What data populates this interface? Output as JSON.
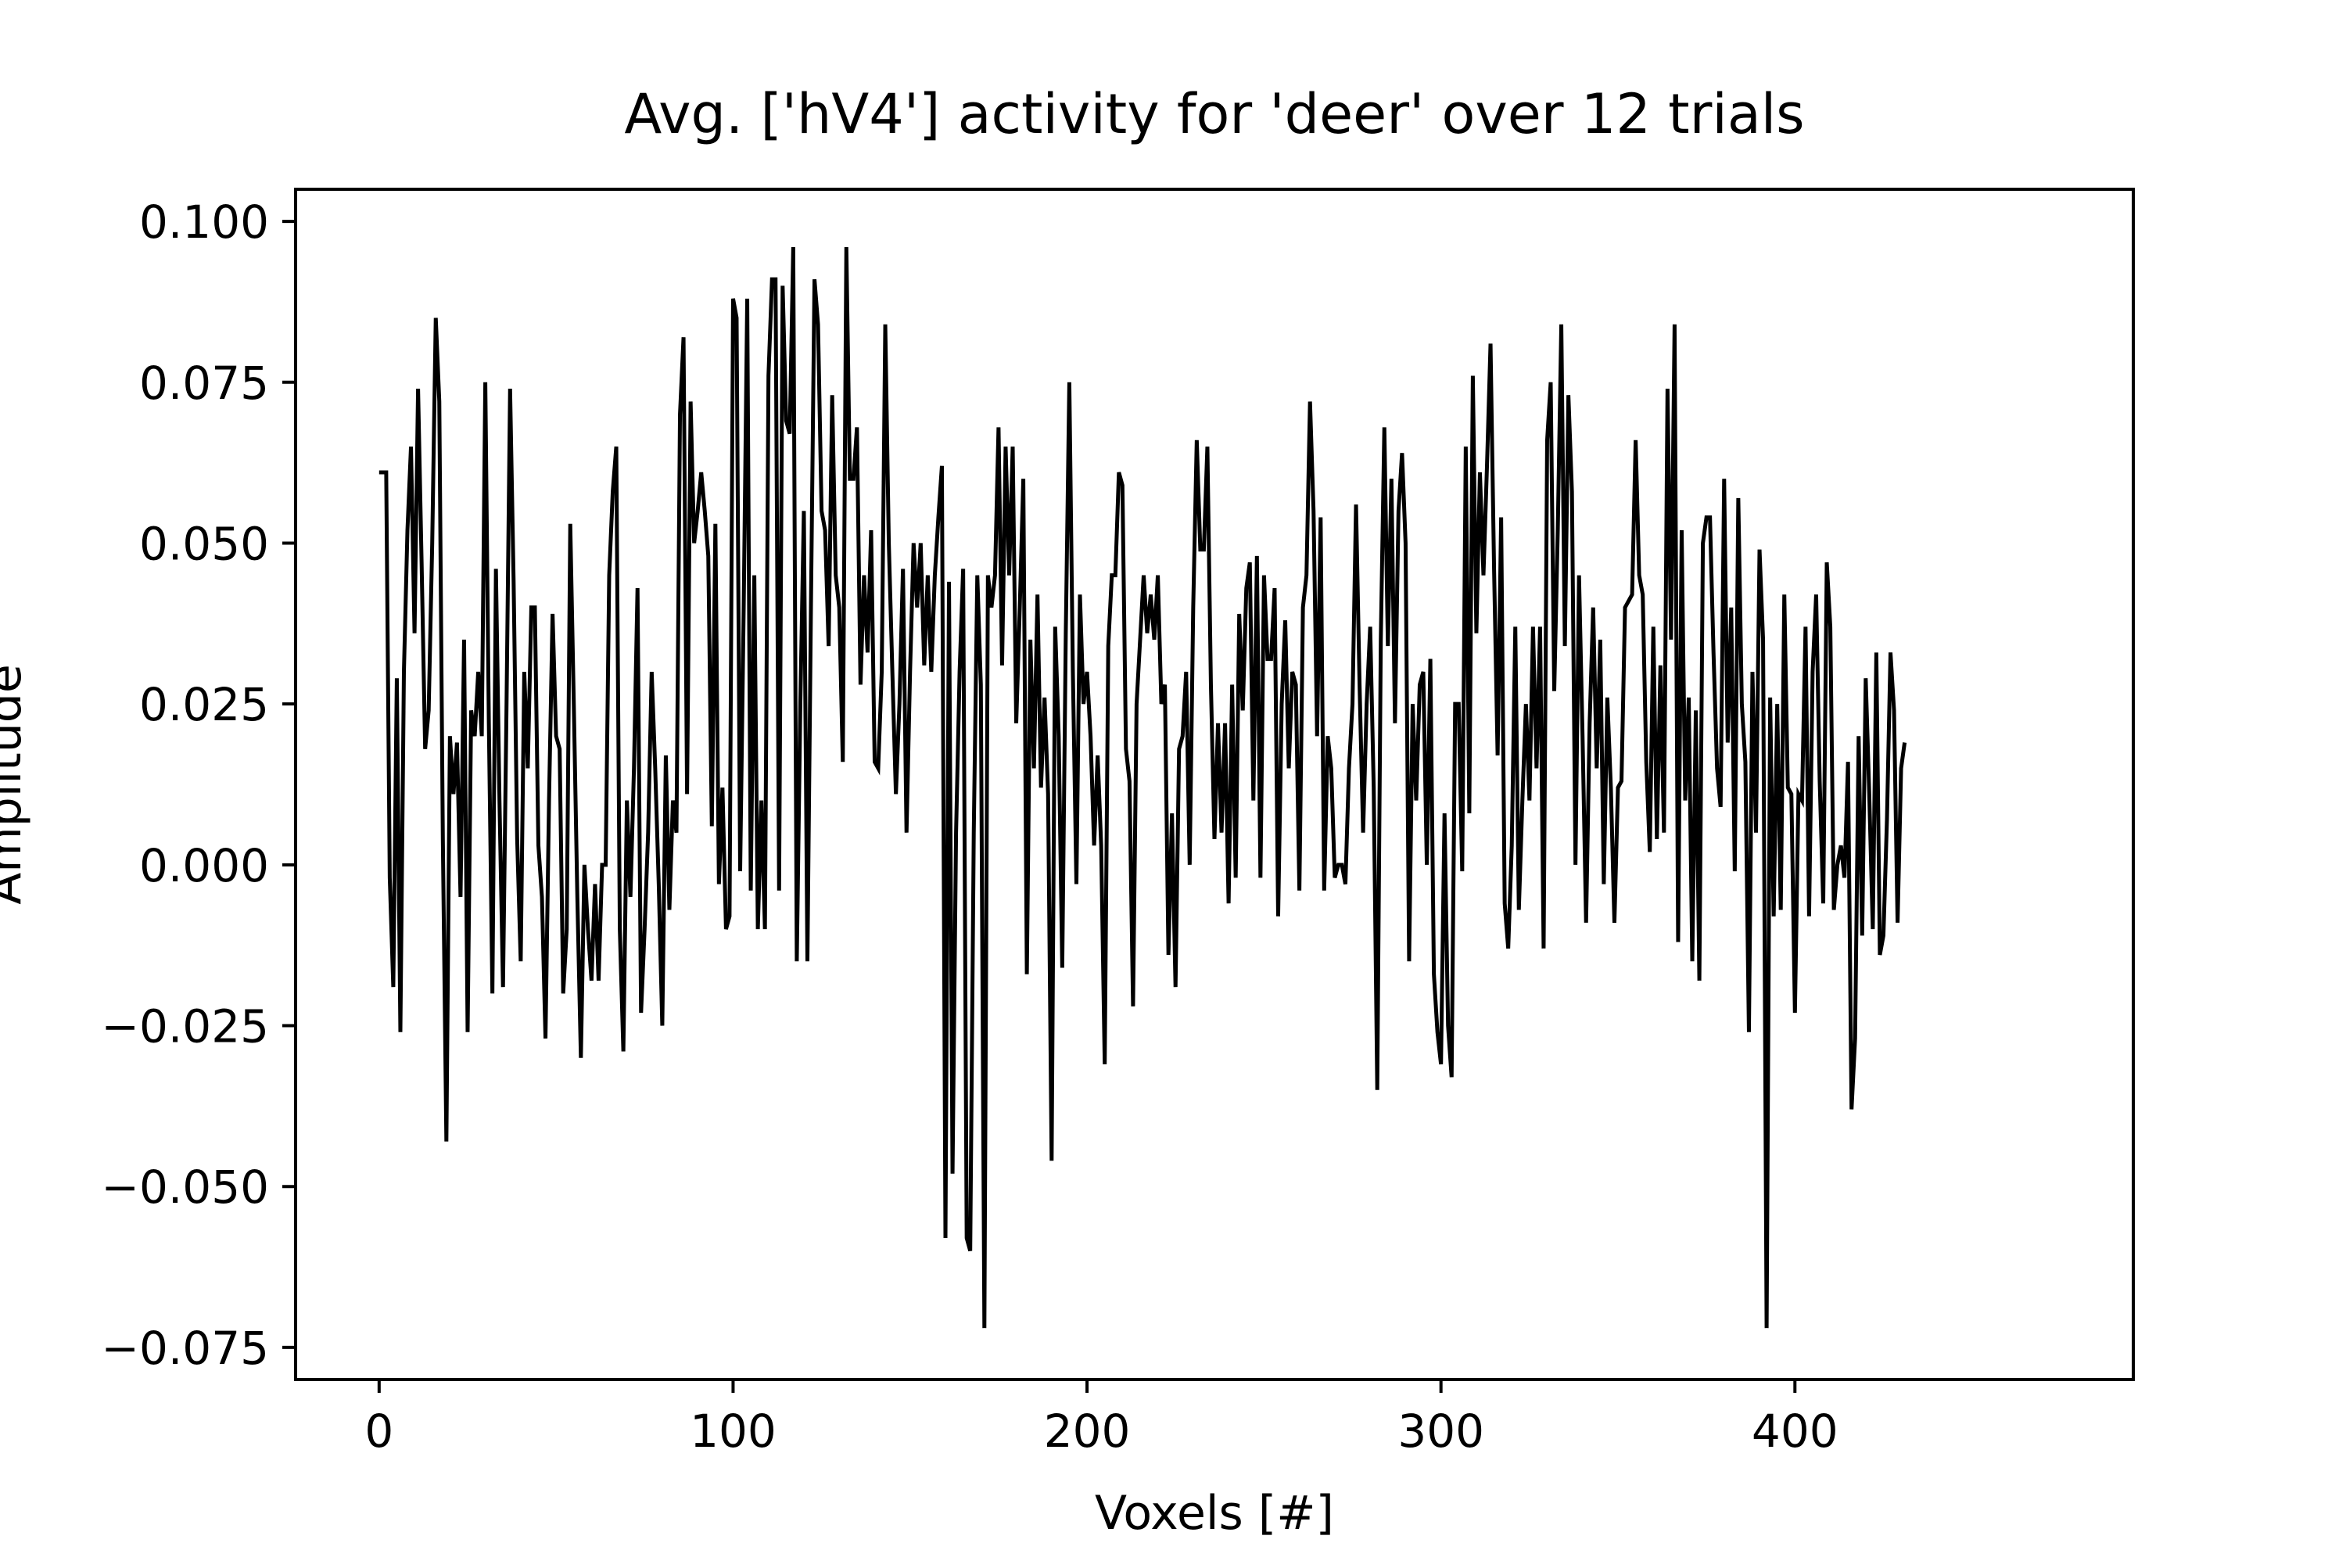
{
  "chart_data": {
    "type": "line",
    "title": "Avg. ['hV4'] activity for 'deer' over 12 trials",
    "xlabel": "Voxels [#]",
    "ylabel": "Amplitude",
    "xlim": [
      -23.6,
      495.6
    ],
    "ylim": [
      -0.08,
      0.105
    ],
    "x_ticks": [
      0,
      100,
      200,
      300,
      400
    ],
    "x_tick_labels": [
      "0",
      "100",
      "200",
      "300",
      "400"
    ],
    "y_ticks": [
      -0.075,
      -0.05,
      -0.025,
      0.0,
      0.025,
      0.05,
      0.075,
      0.1
    ],
    "y_tick_labels": [
      "−0.075",
      "−0.050",
      "−0.025",
      "0.000",
      "0.025",
      "0.050",
      "0.075",
      "0.100"
    ],
    "grid": false,
    "legend": "none",
    "line_color": "#000000",
    "x_start": 0,
    "x_step": 1,
    "series": [
      {
        "values": [
          0.061,
          0.061,
          0.061,
          -0.002,
          -0.019,
          0.029,
          -0.026,
          0.03,
          0.052,
          0.065,
          0.036,
          0.074,
          0.047,
          0.018,
          0.024,
          0.05,
          0.085,
          0.072,
          0.004,
          -0.043,
          0.02,
          0.011,
          0.019,
          -0.005,
          0.035,
          -0.026,
          0.024,
          0.02,
          0.03,
          0.02,
          0.075,
          0.022,
          -0.02,
          0.046,
          0.01,
          -0.019,
          0.025,
          0.074,
          0.044,
          0.004,
          -0.015,
          0.03,
          0.015,
          0.04,
          0.04,
          0.003,
          -0.005,
          -0.027,
          0.01,
          0.039,
          0.02,
          0.018,
          -0.02,
          -0.01,
          0.053,
          0.025,
          -0.005,
          -0.03,
          0.0,
          -0.01,
          -0.018,
          -0.003,
          -0.018,
          0.0,
          0.0,
          0.045,
          0.058,
          0.065,
          -0.01,
          -0.029,
          0.01,
          -0.005,
          0.015,
          0.043,
          -0.023,
          -0.01,
          0.005,
          0.03,
          0.015,
          -0.003,
          -0.025,
          0.017,
          -0.007,
          0.01,
          0.005,
          0.07,
          0.082,
          0.011,
          0.072,
          0.05,
          0.055,
          0.061,
          0.055,
          0.048,
          0.006,
          0.053,
          -0.003,
          0.012,
          -0.01,
          -0.008,
          0.088,
          0.085,
          -0.001,
          0.04,
          0.088,
          -0.004,
          0.045,
          -0.01,
          0.01,
          -0.01,
          0.076,
          0.091,
          0.091,
          -0.004,
          0.09,
          0.069,
          0.067,
          0.096,
          -0.015,
          0.025,
          0.055,
          -0.015,
          0.04,
          0.091,
          0.084,
          0.055,
          0.052,
          0.034,
          0.073,
          0.045,
          0.04,
          0.016,
          0.096,
          0.06,
          0.06,
          0.068,
          0.028,
          0.045,
          0.033,
          0.052,
          0.016,
          0.015,
          0.03,
          0.084,
          0.05,
          0.03,
          0.011,
          0.025,
          0.046,
          0.005,
          0.03,
          0.05,
          0.04,
          0.05,
          0.031,
          0.045,
          0.03,
          0.045,
          0.054,
          0.062,
          -0.058,
          0.044,
          -0.048,
          0.005,
          0.03,
          0.046,
          -0.058,
          -0.06,
          0.005,
          0.045,
          0.028,
          -0.072,
          0.045,
          0.04,
          0.045,
          0.068,
          0.031,
          0.065,
          0.045,
          0.065,
          0.022,
          0.04,
          0.06,
          -0.017,
          0.035,
          0.015,
          0.042,
          0.012,
          0.026,
          0.011,
          -0.046,
          0.037,
          0.02,
          -0.016,
          0.036,
          0.075,
          0.03,
          -0.003,
          0.042,
          0.025,
          0.03,
          0.02,
          0.003,
          0.017,
          0.003,
          -0.031,
          0.034,
          0.045,
          0.045,
          0.061,
          0.059,
          0.018,
          0.013,
          -0.022,
          0.025,
          0.035,
          0.045,
          0.036,
          0.042,
          0.035,
          0.045,
          0.025,
          0.028,
          -0.014,
          0.008,
          -0.019,
          0.018,
          0.02,
          0.03,
          0.0,
          0.04,
          0.066,
          0.049,
          0.049,
          0.065,
          0.028,
          0.004,
          0.022,
          0.005,
          0.022,
          -0.006,
          0.028,
          -0.002,
          0.039,
          0.024,
          0.043,
          0.047,
          0.01,
          0.048,
          -0.002,
          0.045,
          0.032,
          0.032,
          0.043,
          -0.008,
          0.025,
          0.038,
          0.015,
          0.03,
          0.028,
          -0.004,
          0.04,
          0.045,
          0.072,
          0.055,
          0.02,
          0.054,
          -0.004,
          0.02,
          0.015,
          -0.002,
          0.0,
          0.0,
          -0.003,
          0.015,
          0.025,
          0.056,
          0.028,
          0.005,
          0.025,
          0.037,
          0.012,
          -0.035,
          0.035,
          0.068,
          0.034,
          0.06,
          0.022,
          0.055,
          0.064,
          0.05,
          -0.015,
          0.025,
          0.01,
          0.028,
          0.03,
          0.0,
          0.032,
          -0.017,
          -0.026,
          -0.031,
          0.008,
          -0.025,
          -0.033,
          0.025,
          0.025,
          -0.001,
          0.065,
          0.008,
          0.076,
          0.036,
          0.061,
          0.045,
          0.062,
          0.081,
          0.046,
          0.017,
          0.054,
          -0.006,
          -0.013,
          0.003,
          0.037,
          -0.007,
          0.01,
          0.025,
          0.01,
          0.037,
          0.015,
          0.037,
          -0.013,
          0.066,
          0.075,
          0.027,
          0.052,
          0.084,
          0.034,
          0.073,
          0.058,
          0.0,
          0.045,
          0.02,
          -0.009,
          0.022,
          0.04,
          0.015,
          0.035,
          -0.003,
          0.026,
          0.012,
          -0.009,
          0.012,
          0.013,
          0.04,
          0.041,
          0.042,
          0.066,
          0.045,
          0.042,
          0.016,
          0.002,
          0.037,
          0.004,
          0.031,
          0.005,
          0.074,
          0.035,
          0.084,
          -0.012,
          0.052,
          0.01,
          0.026,
          -0.015,
          0.024,
          -0.018,
          0.05,
          0.054,
          0.054,
          0.033,
          0.015,
          0.009,
          0.06,
          0.019,
          0.04,
          -0.001,
          0.057,
          0.025,
          0.016,
          -0.026,
          0.03,
          0.005,
          0.049,
          0.035,
          -0.072,
          0.026,
          -0.008,
          0.025,
          -0.007,
          0.042,
          0.012,
          0.011,
          -0.023,
          0.011,
          0.01,
          0.037,
          -0.008,
          0.03,
          0.042,
          0.013,
          -0.006,
          0.047,
          0.037,
          -0.007,
          0.0,
          0.003,
          -0.002,
          0.016,
          -0.038,
          -0.027,
          0.02,
          -0.011,
          0.029,
          0.011,
          -0.01,
          0.033,
          -0.014,
          -0.011,
          0.007,
          0.033,
          0.024,
          -0.009,
          0.015,
          0.019
        ]
      }
    ]
  }
}
